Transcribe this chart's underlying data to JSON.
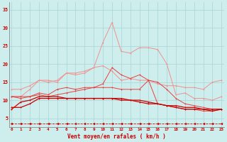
{
  "xlabel": "Vent moyen/en rafales ( km/h )",
  "background_color": "#ceeeed",
  "grid_color": "#aad4d4",
  "axis_color": "#888888",
  "x": [
    0,
    1,
    2,
    3,
    4,
    5,
    6,
    7,
    8,
    9,
    10,
    11,
    12,
    13,
    14,
    15,
    16,
    17,
    18,
    19,
    20,
    21,
    22,
    23
  ],
  "ylim": [
    2.5,
    37
  ],
  "xlim": [
    -0.3,
    23.3
  ],
  "yticks": [
    5,
    10,
    15,
    20,
    25,
    30,
    35
  ],
  "line_light1": [
    11.0,
    11.0,
    13.0,
    15.5,
    15.0,
    15.5,
    17.5,
    17.5,
    18.0,
    19.0,
    26.0,
    31.5,
    23.5,
    23.0,
    24.5,
    24.5,
    24.0,
    20.0,
    11.5,
    12.0,
    10.5,
    10.5,
    10.0,
    11.0
  ],
  "line_light2": [
    13.0,
    13.0,
    14.0,
    15.5,
    15.5,
    15.0,
    17.5,
    17.0,
    17.5,
    19.0,
    19.5,
    18.0,
    15.5,
    16.0,
    15.5,
    15.5,
    14.5,
    14.0,
    14.0,
    13.5,
    13.5,
    13.0,
    15.0,
    15.5
  ],
  "line_mid1": [
    11.0,
    10.5,
    11.0,
    11.5,
    11.0,
    11.5,
    12.0,
    12.5,
    13.0,
    13.5,
    14.5,
    19.0,
    17.0,
    16.0,
    17.0,
    15.5,
    15.0,
    13.0,
    10.5,
    9.0,
    8.5,
    8.0,
    7.5,
    7.5
  ],
  "line_mid2": [
    11.0,
    11.0,
    11.0,
    12.0,
    11.5,
    13.0,
    13.5,
    13.0,
    13.5,
    13.5,
    13.5,
    13.5,
    13.0,
    13.0,
    13.0,
    15.5,
    9.0,
    8.5,
    8.0,
    7.5,
    7.5,
    7.0,
    7.0,
    7.5
  ],
  "line_dark1": [
    7.5,
    9.5,
    10.0,
    11.0,
    11.0,
    11.0,
    10.5,
    10.5,
    10.5,
    10.5,
    10.5,
    10.5,
    10.5,
    10.0,
    10.0,
    9.5,
    9.0,
    8.5,
    8.5,
    8.0,
    8.0,
    7.5,
    7.5,
    7.5
  ],
  "line_dark2": [
    8.0,
    8.0,
    9.0,
    10.5,
    10.5,
    10.5,
    10.5,
    10.5,
    10.5,
    10.5,
    10.5,
    10.5,
    10.0,
    10.0,
    9.5,
    9.0,
    9.0,
    8.5,
    8.0,
    7.5,
    7.5,
    7.5,
    7.0,
    7.5
  ],
  "line_arrows": [
    3.5,
    3.5,
    3.5,
    3.5,
    3.5,
    3.5,
    3.5,
    3.5,
    3.5,
    3.5,
    3.5,
    3.5,
    3.5,
    3.5,
    3.5,
    3.5,
    3.5,
    3.5,
    3.5,
    3.5,
    3.5,
    3.5,
    3.5,
    3.5
  ],
  "color_dark": "#cc0000",
  "color_mid": "#e84040",
  "color_light": "#f09090"
}
